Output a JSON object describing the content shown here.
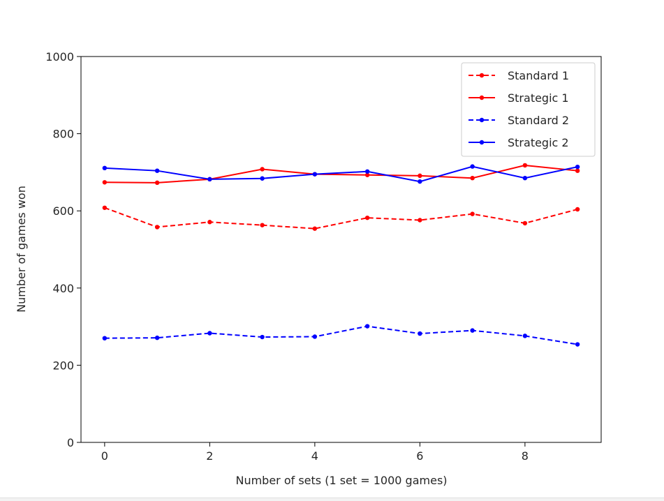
{
  "chart_data": {
    "type": "line",
    "title": "",
    "xlabel": "Number of sets (1 set = 1000 games)",
    "ylabel": "Number of games won",
    "xlim": [
      -0.45,
      9.45
    ],
    "ylim": [
      0,
      1000
    ],
    "xticks": [
      0,
      2,
      4,
      6,
      8
    ],
    "yticks": [
      0,
      200,
      400,
      600,
      800,
      1000
    ],
    "grid": false,
    "legend_position": "top-right",
    "x": [
      0,
      1,
      2,
      3,
      4,
      5,
      6,
      7,
      8,
      9
    ],
    "series": [
      {
        "name": "Standard 1",
        "color": "#ff0000",
        "style": "dashed",
        "values": [
          608,
          558,
          571,
          563,
          554,
          582,
          576,
          592,
          568,
          604
        ]
      },
      {
        "name": "Strategic 1",
        "color": "#ff0000",
        "style": "solid",
        "values": [
          674,
          673,
          682,
          708,
          695,
          693,
          691,
          685,
          718,
          704
        ]
      },
      {
        "name": "Standard 2",
        "color": "#0000ff",
        "style": "dashed",
        "values": [
          270,
          271,
          283,
          273,
          274,
          301,
          282,
          290,
          276,
          254
        ]
      },
      {
        "name": "Strategic 2",
        "color": "#0000ff",
        "style": "solid",
        "values": [
          711,
          704,
          682,
          684,
          695,
          702,
          676,
          715,
          685,
          714
        ]
      }
    ]
  }
}
